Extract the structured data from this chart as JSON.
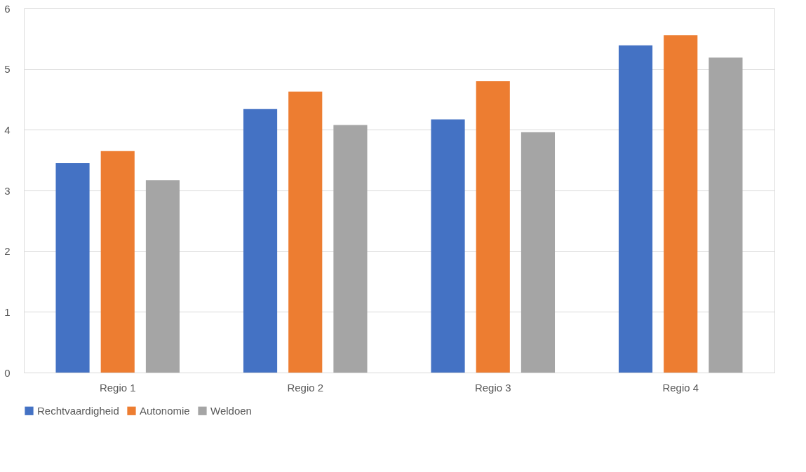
{
  "chart_data": {
    "type": "bar",
    "categories": [
      "Regio 1",
      "Regio 2",
      "Regio 3",
      "Regio 4"
    ],
    "series": [
      {
        "name": "Rechtvaardigheid",
        "color": "#4472c4",
        "values": [
          3.45,
          4.34,
          4.17,
          5.39
        ]
      },
      {
        "name": "Autonomie",
        "color": "#ed7d31",
        "values": [
          3.65,
          4.63,
          4.8,
          5.56
        ]
      },
      {
        "name": "Weldoen",
        "color": "#a5a5a5",
        "values": [
          3.17,
          4.08,
          3.96,
          5.19
        ]
      }
    ],
    "ylim": [
      0,
      6
    ],
    "yticks": [
      0,
      1,
      2,
      3,
      4,
      5,
      6
    ],
    "grid": "y",
    "legend": "bottom"
  }
}
